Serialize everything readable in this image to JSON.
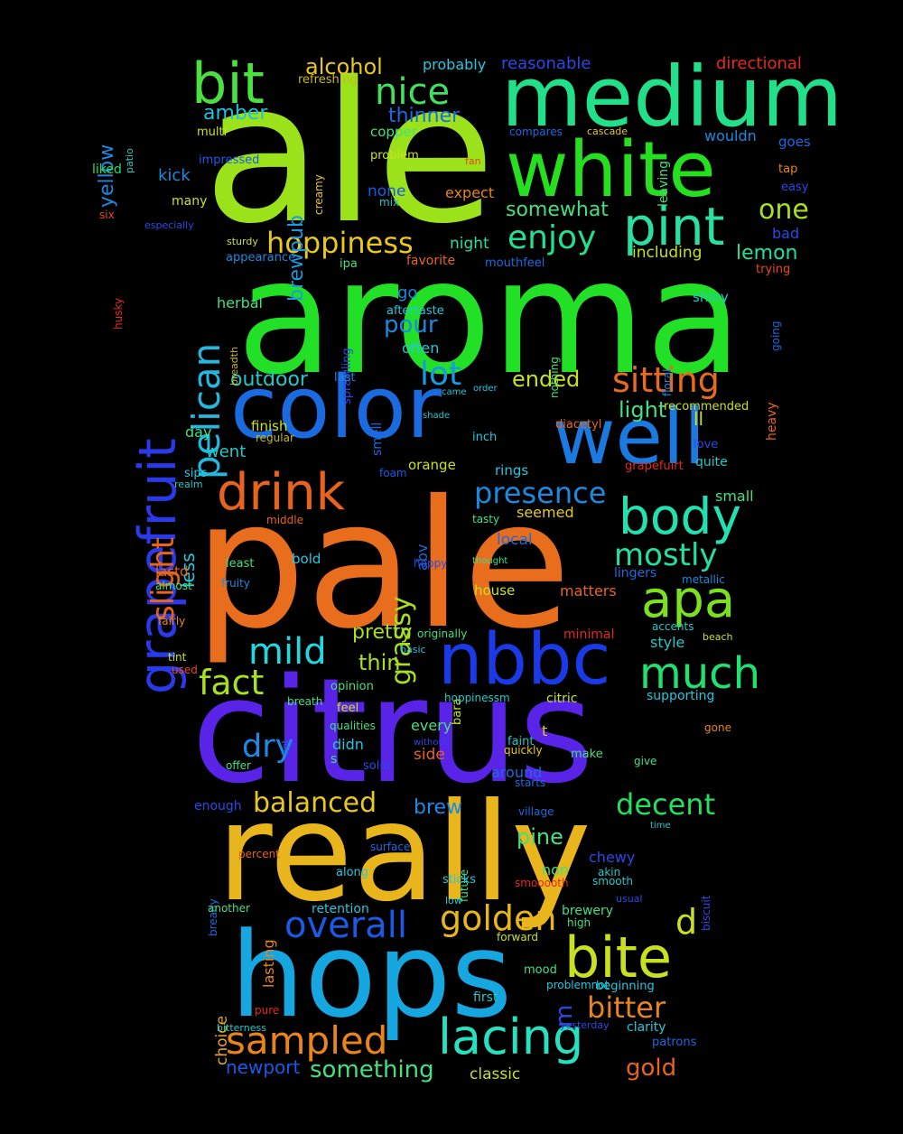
{
  "words": [
    {
      "t": "ale",
      "c": "#9be21a"
    },
    {
      "t": "aroma",
      "c": "#22e026"
    },
    {
      "t": "pale",
      "c": "#e86d1c"
    },
    {
      "t": "citrus",
      "c": "#5a24e8"
    },
    {
      "t": "really",
      "c": "#e8b51c"
    },
    {
      "t": "hops",
      "c": "#16a6e0"
    },
    {
      "t": "medium",
      "c": "#22e08a"
    },
    {
      "t": "white",
      "c": "#26e020"
    },
    {
      "t": "color",
      "c": "#1a6ae0"
    },
    {
      "t": "well",
      "c": "#1a7ae0"
    },
    {
      "t": "nbbc",
      "c": "#1a3ae8"
    },
    {
      "t": "grapefruit",
      "c": "#2a3ae8"
    },
    {
      "t": "pint",
      "c": "#2ae0a0"
    },
    {
      "t": "bit",
      "c": "#4ae040"
    },
    {
      "t": "drink",
      "c": "#e8641c"
    },
    {
      "t": "body",
      "c": "#22e0b0"
    },
    {
      "t": "apa",
      "c": "#7ae020"
    },
    {
      "t": "bite",
      "c": "#c8e020"
    },
    {
      "t": "lacing",
      "c": "#26e0c0"
    },
    {
      "t": "much",
      "c": "#20e070"
    },
    {
      "t": "sampled",
      "c": "#e8841c"
    },
    {
      "t": "nice",
      "c": "#42e060"
    },
    {
      "t": "pelican",
      "c": "#22b8e0"
    },
    {
      "t": "sitting",
      "c": "#e86a1c"
    },
    {
      "t": "mild",
      "c": "#22d8e0"
    },
    {
      "t": "overall",
      "c": "#1a5ae8"
    },
    {
      "t": "golden",
      "c": "#e8b51c"
    },
    {
      "t": "fact",
      "c": "#a8e020"
    },
    {
      "t": "hoppiness",
      "c": "#e8c81c"
    },
    {
      "t": "enjoy",
      "c": "#22e090"
    },
    {
      "t": "presence",
      "c": "#1a8ae0"
    },
    {
      "t": "mostly",
      "c": "#22e0a0"
    },
    {
      "t": "slight",
      "c": "#e8641c"
    },
    {
      "t": "dry",
      "c": "#1a8ae8"
    },
    {
      "t": "balanced",
      "c": "#e8c81c"
    },
    {
      "t": "decent",
      "c": "#22e060"
    },
    {
      "t": "lot",
      "c": "#1a9ae0"
    },
    {
      "t": "one",
      "c": "#a8e020"
    },
    {
      "t": "d",
      "c": "#c8e020"
    },
    {
      "t": "bitter",
      "c": "#e8841c"
    },
    {
      "t": "gold",
      "c": "#e8641c"
    },
    {
      "t": "something",
      "c": "#42e080"
    },
    {
      "t": "grassy",
      "c": "#a8e020"
    },
    {
      "t": "alcohol",
      "c": "#e8c81c"
    },
    {
      "t": "amber",
      "c": "#22c0e0"
    },
    {
      "t": "brewpub",
      "c": "#1a9ae0"
    },
    {
      "t": "thinner",
      "c": "#1a6ae8"
    },
    {
      "t": "outdoor",
      "c": "#22c8c8"
    },
    {
      "t": "ended",
      "c": "#c8e020"
    },
    {
      "t": "light",
      "c": "#42e080"
    },
    {
      "t": "pour",
      "c": "#1a8ae0"
    },
    {
      "t": "lemon",
      "c": "#22e0a0"
    },
    {
      "t": "somewhat",
      "c": "#42e080"
    },
    {
      "t": "thin",
      "c": "#a8e020"
    },
    {
      "t": "pretty",
      "c": "#a8e020"
    },
    {
      "t": "brew",
      "c": "#1a8ae8"
    },
    {
      "t": "pine",
      "c": "#42e080"
    },
    {
      "t": "newport",
      "c": "#1a5ae8"
    },
    {
      "t": "classic",
      "c": "#c8e020"
    },
    {
      "t": "yellow",
      "c": "#1a8ae0"
    },
    {
      "t": "reasonable",
      "c": "#2a4ae8"
    },
    {
      "t": "probably",
      "c": "#22c8e0"
    },
    {
      "t": "directional",
      "c": "#e8281c"
    },
    {
      "t": "refreshing",
      "c": "#c8b81c"
    },
    {
      "t": "multi",
      "c": "#c8e020"
    },
    {
      "t": "liked",
      "c": "#22e060"
    },
    {
      "t": "kick",
      "c": "#1a8ae0"
    },
    {
      "t": "impressed",
      "c": "#1a5ae8"
    },
    {
      "t": "creamy",
      "c": "#e8c81c"
    },
    {
      "t": "patio",
      "c": "#22c8c8"
    },
    {
      "t": "six",
      "c": "#e8481c"
    },
    {
      "t": "many",
      "c": "#c8e020"
    },
    {
      "t": "especially",
      "c": "#2a4ae8"
    },
    {
      "t": "husky",
      "c": "#e8281c"
    },
    {
      "t": "sturdy",
      "c": "#c8e020"
    },
    {
      "t": "appearance",
      "c": "#1a8ae0"
    },
    {
      "t": "herbal",
      "c": "#42e080"
    },
    {
      "t": "breadth",
      "c": "#c8b81c"
    },
    {
      "t": "copper",
      "c": "#42e080"
    },
    {
      "t": "problem",
      "c": "#c8e020"
    },
    {
      "t": "none",
      "c": "#1a5ae8"
    },
    {
      "t": "mix",
      "c": "#22c8c8"
    },
    {
      "t": "expect",
      "c": "#e8841c"
    },
    {
      "t": "night",
      "c": "#22e0a0"
    },
    {
      "t": "ipa",
      "c": "#42e080"
    },
    {
      "t": "favorite",
      "c": "#e8641c"
    },
    {
      "t": "go",
      "c": "#1a8ae0"
    },
    {
      "t": "aftertaste",
      "c": "#22c8e0"
    },
    {
      "t": "sprawling",
      "c": "#2a4ae8"
    },
    {
      "t": "often",
      "c": "#22c8e0"
    },
    {
      "t": "last",
      "c": "#1a8ae0"
    },
    {
      "t": "smell",
      "c": "#1a6ae0"
    },
    {
      "t": "compares",
      "c": "#1a6ae0"
    },
    {
      "t": "cascade",
      "c": "#e8c81c"
    },
    {
      "t": "fan",
      "c": "#e8481c"
    },
    {
      "t": "leaving",
      "c": "#42e080"
    },
    {
      "t": "wouldn",
      "c": "#1a8ae0"
    },
    {
      "t": "goes",
      "c": "#1a6ae0"
    },
    {
      "t": "tap",
      "c": "#e8841c"
    },
    {
      "t": "easy",
      "c": "#2a4ae8"
    },
    {
      "t": "bad",
      "c": "#2a4ae8"
    },
    {
      "t": "including",
      "c": "#c8e020"
    },
    {
      "t": "trying",
      "c": "#e8481c"
    },
    {
      "t": "mouthfeel",
      "c": "#1a6ae0"
    },
    {
      "t": "shiny",
      "c": "#22c8c8"
    },
    {
      "t": "going",
      "c": "#1a6ae0"
    },
    {
      "t": "nothing",
      "c": "#42e080"
    },
    {
      "t": "floral",
      "c": "#1a8ae0"
    },
    {
      "t": "heavy",
      "c": "#e8641c"
    },
    {
      "t": "came",
      "c": "#22c8e0"
    },
    {
      "t": "order",
      "c": "#22c8e0"
    },
    {
      "t": "recommended",
      "c": "#c8e020"
    },
    {
      "t": "ll",
      "c": "#c8e020"
    },
    {
      "t": "shade",
      "c": "#22c8c8"
    },
    {
      "t": "diacetyl",
      "c": "#e8641c"
    },
    {
      "t": "inch",
      "c": "#22c8e0"
    },
    {
      "t": "finish",
      "c": "#c8e020"
    },
    {
      "t": "regular",
      "c": "#c8b81c"
    },
    {
      "t": "day",
      "c": "#42e080"
    },
    {
      "t": "went",
      "c": "#22c8c8"
    },
    {
      "t": "love",
      "c": "#2a4ae8"
    },
    {
      "t": "quite",
      "c": "#22c8c8"
    },
    {
      "t": "sips",
      "c": "#22c8e0"
    },
    {
      "t": "foam",
      "c": "#1a5ae8"
    },
    {
      "t": "orange",
      "c": "#c8e020"
    },
    {
      "t": "rings",
      "c": "#22c8e0"
    },
    {
      "t": "grapefuirt",
      "c": "#e8281c"
    },
    {
      "t": "small",
      "c": "#42e080"
    },
    {
      "t": "realm",
      "c": "#22c8c8"
    },
    {
      "t": "less",
      "c": "#22c8e0"
    },
    {
      "t": "middle",
      "c": "#e8641c"
    },
    {
      "t": "abv",
      "c": "#1a6ae0"
    },
    {
      "t": "tasty",
      "c": "#42e080"
    },
    {
      "t": "seemed",
      "c": "#e8c81c"
    },
    {
      "t": "local",
      "c": "#1a6ae0"
    },
    {
      "t": "bold",
      "c": "#22c8e0"
    },
    {
      "t": "least",
      "c": "#42e080"
    },
    {
      "t": "thought",
      "c": "#42e080"
    },
    {
      "t": "hoppy",
      "c": "#2a4ae8"
    },
    {
      "t": "lingers",
      "c": "#1a6ae0"
    },
    {
      "t": "metallic",
      "c": "#1a8ae0"
    },
    {
      "t": "lastd",
      "c": "#e8641c"
    },
    {
      "t": "almost",
      "c": "#42e080"
    },
    {
      "t": "fruity",
      "c": "#1a8ae0"
    },
    {
      "t": "house",
      "c": "#c8e020"
    },
    {
      "t": "matters",
      "c": "#e8641c"
    },
    {
      "t": "accents",
      "c": "#22c8c8"
    },
    {
      "t": "fairly",
      "c": "#e8841c"
    },
    {
      "t": "originally",
      "c": "#42e080"
    },
    {
      "t": "minimal",
      "c": "#e8281c"
    },
    {
      "t": "beach",
      "c": "#c8e020"
    },
    {
      "t": "tint",
      "c": "#c8e020"
    },
    {
      "t": "basic",
      "c": "#22c8e0"
    },
    {
      "t": "style",
      "c": "#22c8c8"
    },
    {
      "t": "used",
      "c": "#e8481c"
    },
    {
      "t": "opinion",
      "c": "#42e080"
    },
    {
      "t": "bara",
      "c": "#c8e020"
    },
    {
      "t": "breath",
      "c": "#42e080"
    },
    {
      "t": "hoppinessm",
      "c": "#22c8c8"
    },
    {
      "t": "citric",
      "c": "#c8e020"
    },
    {
      "t": "supporting",
      "c": "#22c8e0"
    },
    {
      "t": "feel",
      "c": "#c8e020"
    },
    {
      "t": "qualities",
      "c": "#42e080"
    },
    {
      "t": "every",
      "c": "#42e080"
    },
    {
      "t": "bet",
      "c": "#1a6ae0"
    },
    {
      "t": "didn",
      "c": "#22c8e0"
    },
    {
      "t": "side",
      "c": "#e8641c"
    },
    {
      "t": "without",
      "c": "#2a4ae8"
    },
    {
      "t": "t",
      "c": "#e8c81c"
    },
    {
      "t": "faint",
      "c": "#22c8c8"
    },
    {
      "t": "quickly",
      "c": "#e8c81c"
    },
    {
      "t": "make",
      "c": "#42e080"
    },
    {
      "t": "gone",
      "c": "#e8841c"
    },
    {
      "t": "offer",
      "c": "#42e080"
    },
    {
      "t": "s",
      "c": "#42e080"
    },
    {
      "t": "solid",
      "c": "#2a4ae8"
    },
    {
      "t": "around",
      "c": "#1a6ae0"
    },
    {
      "t": "give",
      "c": "#42e080"
    },
    {
      "t": "starts",
      "c": "#1a6ae0"
    },
    {
      "t": "enough",
      "c": "#2a4ae8"
    },
    {
      "t": "village",
      "c": "#1a6ae0"
    },
    {
      "t": "time",
      "c": "#22c8c8"
    },
    {
      "t": "percent",
      "c": "#e8641c"
    },
    {
      "t": "surface",
      "c": "#1a6ae0"
    },
    {
      "t": "future",
      "c": "#42e080"
    },
    {
      "t": "chewy",
      "c": "#2a4ae8"
    },
    {
      "t": "biscuit",
      "c": "#2a4ae8"
    },
    {
      "t": "bready",
      "c": "#1a6ae0"
    },
    {
      "t": "along",
      "c": "#22c8e0"
    },
    {
      "t": "non",
      "c": "#42e080"
    },
    {
      "t": "akin",
      "c": "#22c8c8"
    },
    {
      "t": "lasting",
      "c": "#e8841c"
    },
    {
      "t": "sticks",
      "c": "#22c8e0"
    },
    {
      "t": "smooooth",
      "c": "#e8281c"
    },
    {
      "t": "smooth",
      "c": "#22c8c8"
    },
    {
      "t": "low",
      "c": "#22c8e0"
    },
    {
      "t": "usual",
      "c": "#2a4ae8"
    },
    {
      "t": "another",
      "c": "#42e080"
    },
    {
      "t": "retention",
      "c": "#22c8e0"
    },
    {
      "t": "brewery",
      "c": "#42e080"
    },
    {
      "t": "high",
      "c": "#42e080"
    },
    {
      "t": "forward",
      "c": "#c8e020"
    },
    {
      "t": "m",
      "c": "#2a4ae8"
    },
    {
      "t": "choice",
      "c": "#e8a81c"
    },
    {
      "t": "mood",
      "c": "#42e080"
    },
    {
      "t": "problemnot",
      "c": "#22c8e0"
    },
    {
      "t": "beginning",
      "c": "#22c8e0"
    },
    {
      "t": "first",
      "c": "#22c8c8"
    },
    {
      "t": "pure",
      "c": "#e8281c"
    },
    {
      "t": "yesterday",
      "c": "#2a4ae8"
    },
    {
      "t": "clarity",
      "c": "#22c8e0"
    },
    {
      "t": "bitterness",
      "c": "#22c8c8"
    },
    {
      "t": "patrons",
      "c": "#1a6ae0"
    }
  ]
}
